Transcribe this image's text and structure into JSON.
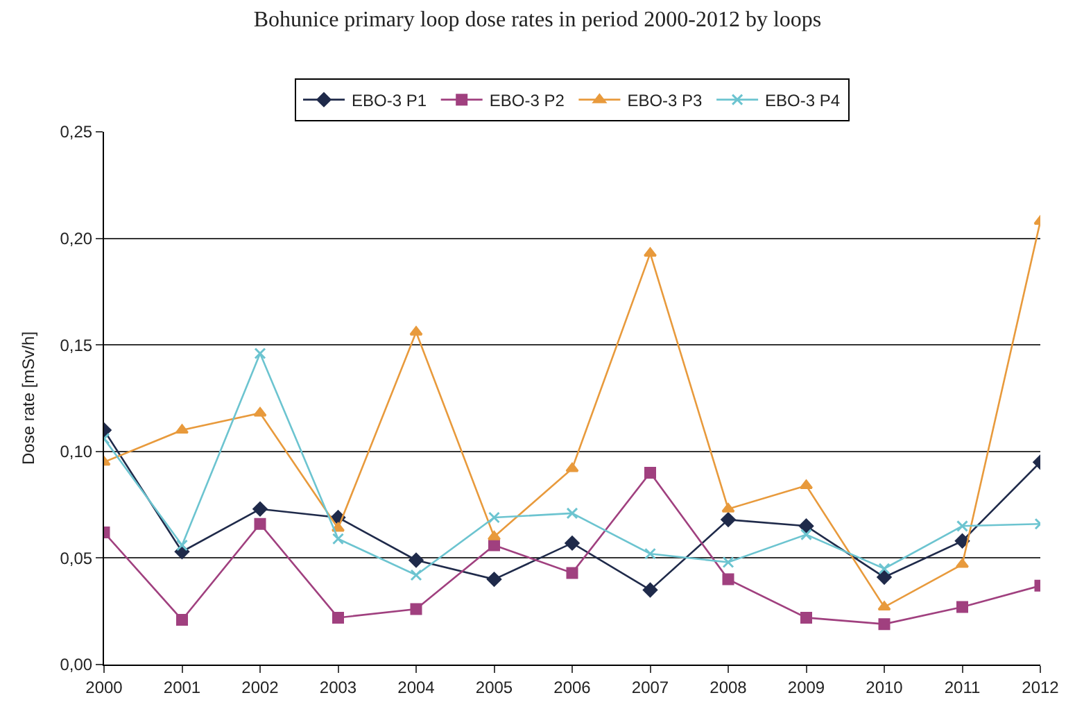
{
  "chart_data": {
    "type": "line",
    "title": "Bohunice primary loop dose rates in period 2000-2012 by loops",
    "ylabel": "Dose rate [mSv/h]",
    "x": [
      2000,
      2001,
      2002,
      2003,
      2004,
      2005,
      2006,
      2007,
      2008,
      2009,
      2010,
      2011,
      2012
    ],
    "series": [
      {
        "name": "EBO-3 P1",
        "color": "#1f2a4a",
        "marker": "diamond",
        "values": [
          0.11,
          0.053,
          0.073,
          0.069,
          0.049,
          0.04,
          0.057,
          0.035,
          0.068,
          0.065,
          0.041,
          0.058,
          0.095
        ]
      },
      {
        "name": "EBO-3 P2",
        "color": "#a0407f",
        "marker": "square",
        "values": [
          0.062,
          0.021,
          0.066,
          0.022,
          0.026,
          0.056,
          0.043,
          0.09,
          0.04,
          0.022,
          0.019,
          0.027,
          0.037
        ]
      },
      {
        "name": "EBO-3 P3",
        "color": "#e89a3c",
        "marker": "triangle",
        "values": [
          0.095,
          0.11,
          0.118,
          0.064,
          0.156,
          0.06,
          0.092,
          0.193,
          0.073,
          0.084,
          0.027,
          0.047,
          0.208
        ]
      },
      {
        "name": "EBO-3 P4",
        "color": "#6cc4d0",
        "marker": "cross",
        "values": [
          0.106,
          0.056,
          0.146,
          0.059,
          0.042,
          0.069,
          0.071,
          0.052,
          0.048,
          0.061,
          0.045,
          0.065,
          0.066
        ]
      }
    ],
    "xlim": [
      2000,
      2012
    ],
    "xticks": [
      2000,
      2001,
      2002,
      2003,
      2004,
      2005,
      2006,
      2007,
      2008,
      2009,
      2010,
      2011,
      2012
    ],
    "ylim": [
      0,
      0.25
    ],
    "yticks": [
      {
        "value": 0,
        "label": "0,00"
      },
      {
        "value": 0.05,
        "label": "0,05"
      },
      {
        "value": 0.1,
        "label": "0,10"
      },
      {
        "value": 0.15,
        "label": "0,15"
      },
      {
        "value": 0.2,
        "label": "0,20"
      },
      {
        "value": 0.25,
        "label": "0,25"
      }
    ],
    "grid": "y",
    "legend": "top",
    "line_style": "solid"
  }
}
